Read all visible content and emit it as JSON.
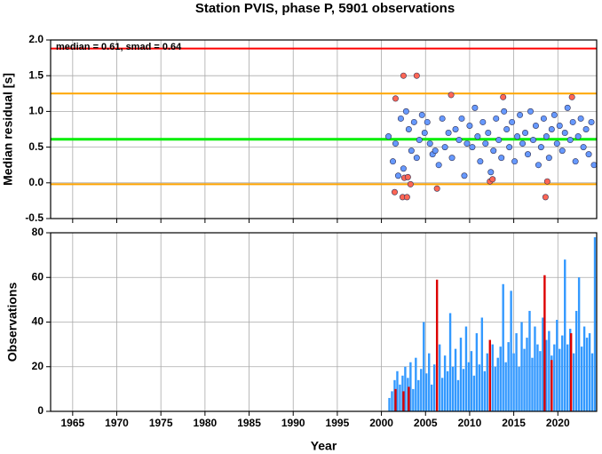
{
  "chart_data": [
    {
      "type": "scatter",
      "title": "Station PVIS, phase P, 5901 observations",
      "ylabel": "Median residual [s]",
      "annotation": "median = 0.61, smad = 0.64",
      "xlim": [
        1962.5,
        2024.4
      ],
      "xticks": [
        1965,
        1970,
        1975,
        1980,
        1985,
        1990,
        1995,
        2000,
        2005,
        2010,
        2015,
        2020
      ],
      "ylim": [
        -0.5,
        2.0
      ],
      "yticks": [
        {
          "value": 2,
          "label": "2.0"
        },
        1.5,
        {
          "value": 1,
          "label": "1.0"
        },
        0.5,
        {
          "value": 0,
          "label": "0.0"
        },
        -0.5
      ],
      "grid": true,
      "hlines": [
        {
          "value": 1.88,
          "color": "#ff0000"
        },
        {
          "value": 1.25,
          "color": "#ffa500"
        },
        {
          "value": 0.61,
          "color": "#00ee00"
        },
        {
          "value": -0.02,
          "color": "#ffa500"
        }
      ],
      "series": [
        {
          "color": "#6699ff",
          "x": [
            2000.8,
            2001.3,
            2001.6,
            2001.9,
            2002.2,
            2002.5,
            2002.8,
            2003.1,
            2003.4,
            2003.7,
            2004.0,
            2004.3,
            2004.6,
            2004.9,
            2005.2,
            2005.5,
            2005.8,
            2006.1,
            2006.5,
            2006.9,
            2007.2,
            2007.6,
            2008.0,
            2008.4,
            2008.8,
            2009.1,
            2009.4,
            2009.7,
            2010.0,
            2010.3,
            2010.6,
            2010.9,
            2011.2,
            2011.5,
            2011.8,
            2012.1,
            2012.4,
            2012.7,
            2013.0,
            2013.3,
            2013.6,
            2013.9,
            2014.2,
            2014.5,
            2014.8,
            2015.1,
            2015.4,
            2015.7,
            2016.0,
            2016.3,
            2016.6,
            2016.9,
            2017.2,
            2017.5,
            2017.8,
            2018.1,
            2018.4,
            2018.7,
            2019.0,
            2019.3,
            2019.6,
            2019.9,
            2020.2,
            2020.5,
            2020.8,
            2021.1,
            2021.4,
            2021.7,
            2022.0,
            2022.3,
            2022.6,
            2022.9,
            2023.2,
            2023.5,
            2023.8,
            2024.1
          ],
          "values": [
            0.65,
            0.3,
            0.55,
            0.1,
            0.9,
            0.2,
            1.0,
            0.75,
            0.45,
            0.85,
            0.35,
            0.6,
            0.95,
            0.7,
            0.85,
            0.55,
            0.4,
            0.45,
            0.25,
            0.9,
            0.5,
            0.7,
            0.35,
            0.75,
            0.6,
            0.9,
            0.1,
            0.55,
            0.8,
            0.5,
            1.05,
            0.65,
            0.3,
            0.85,
            0.55,
            0.7,
            0.15,
            0.45,
            0.9,
            0.6,
            0.35,
            1.0,
            0.75,
            0.5,
            0.85,
            0.3,
            0.65,
            0.95,
            0.55,
            0.7,
            0.4,
            1.0,
            0.6,
            0.8,
            0.25,
            0.5,
            0.9,
            0.65,
            0.35,
            0.75,
            0.95,
            0.55,
            0.8,
            0.45,
            0.7,
            1.05,
            0.6,
            0.85,
            0.3,
            0.65,
            0.9,
            0.5,
            0.75,
            0.4,
            0.85,
            0.25
          ]
        },
        {
          "color": "#ff6655",
          "x": [
            2001.5,
            2001.6,
            2002.4,
            2002.5,
            2002.6,
            2002.9,
            2003.0,
            2003.3,
            2004.0,
            2006.3,
            2007.9,
            2012.3,
            2012.6,
            2013.8,
            2018.6,
            2018.8,
            2021.6
          ],
          "values": [
            -0.13,
            1.18,
            -0.2,
            1.5,
            0.07,
            -0.2,
            0.08,
            -0.02,
            1.5,
            -0.08,
            1.23,
            0.02,
            0.05,
            1.2,
            -0.2,
            0.02,
            1.2
          ]
        }
      ]
    },
    {
      "type": "bar",
      "xlabel": "Year",
      "ylabel": "Observations",
      "xlim": [
        1962.5,
        2024.4
      ],
      "xticks": [
        1965,
        1970,
        1975,
        1980,
        1985,
        1990,
        1995,
        2000,
        2005,
        2010,
        2015,
        2020
      ],
      "ylim": [
        0,
        80
      ],
      "yticks": [
        0,
        20,
        40,
        60,
        80
      ],
      "grid": true,
      "series": [
        {
          "color": "#3399ff",
          "x": [
            2000.9,
            2001.2,
            2001.5,
            2001.8,
            2002.1,
            2002.4,
            2002.7,
            2003.0,
            2003.3,
            2003.6,
            2003.9,
            2004.2,
            2004.5,
            2004.8,
            2005.1,
            2005.4,
            2005.7,
            2006.0,
            2006.6,
            2006.9,
            2007.2,
            2007.5,
            2007.8,
            2008.1,
            2008.4,
            2008.7,
            2009.0,
            2009.3,
            2009.6,
            2009.9,
            2010.2,
            2010.5,
            2010.8,
            2011.1,
            2011.4,
            2011.7,
            2012.0,
            2012.6,
            2012.9,
            2013.2,
            2013.5,
            2013.8,
            2014.1,
            2014.4,
            2014.7,
            2015.0,
            2015.3,
            2015.6,
            2015.9,
            2016.2,
            2016.5,
            2016.8,
            2017.1,
            2017.4,
            2017.7,
            2018.0,
            2018.3,
            2018.7,
            2019.0,
            2019.3,
            2019.6,
            2019.9,
            2020.2,
            2020.5,
            2020.8,
            2021.1,
            2021.4,
            2021.8,
            2022.1,
            2022.4,
            2022.7,
            2023.0,
            2023.3,
            2023.6,
            2023.9,
            2024.2
          ],
          "values": [
            6,
            9,
            14,
            18,
            12,
            16,
            20,
            15,
            22,
            10,
            24,
            14,
            19,
            40,
            17,
            26,
            12,
            21,
            30,
            15,
            25,
            18,
            44,
            20,
            28,
            14,
            33,
            19,
            38,
            22,
            27,
            16,
            35,
            21,
            42,
            18,
            26,
            30,
            20,
            24,
            29,
            57,
            22,
            31,
            54,
            26,
            35,
            20,
            40,
            28,
            33,
            45,
            24,
            38,
            30,
            27,
            42,
            32,
            36,
            25,
            30,
            41,
            28,
            34,
            68,
            30,
            37,
            26,
            45,
            60,
            29,
            38,
            33,
            35,
            26,
            78
          ]
        },
        {
          "color": "#dd0000",
          "x": [
            2001.6,
            2002.5,
            2003.1,
            2006.3,
            2012.3,
            2018.5,
            2019.3,
            2021.5
          ],
          "values": [
            10,
            9,
            11,
            59,
            32,
            61,
            23,
            35
          ]
        }
      ]
    }
  ]
}
